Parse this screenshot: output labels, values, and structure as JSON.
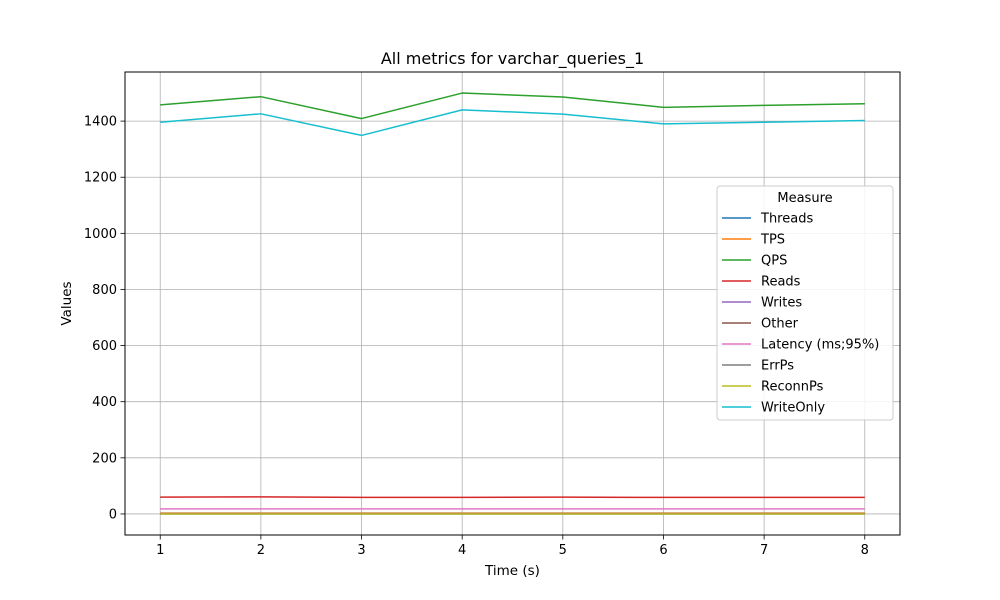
{
  "chart_data": {
    "type": "line",
    "title": "All metrics for varchar_queries_1",
    "xlabel": "Time (s)",
    "ylabel": "Values",
    "x": [
      1,
      2,
      3,
      4,
      5,
      6,
      7,
      8
    ],
    "xticks": [
      1,
      2,
      3,
      4,
      5,
      6,
      7,
      8
    ],
    "yticks": [
      0,
      200,
      400,
      600,
      800,
      1000,
      1200,
      1400
    ],
    "xlim": [
      0.65,
      8.35
    ],
    "ylim": [
      -75,
      1575
    ],
    "grid": true,
    "legend": {
      "title": "Measure",
      "placement": "center-right"
    },
    "series": [
      {
        "name": "Threads",
        "color": "#1f77b4",
        "values": [
          1,
          1,
          1,
          1,
          1,
          1,
          1,
          1
        ]
      },
      {
        "name": "TPS",
        "color": "#ff7f0e",
        "values": [
          3,
          3,
          3,
          3,
          3,
          3,
          3,
          3
        ]
      },
      {
        "name": "QPS",
        "color": "#2ca02c",
        "values": [
          1458,
          1487,
          1409,
          1500,
          1486,
          1449,
          1456,
          1462
        ]
      },
      {
        "name": "Reads",
        "color": "#d62728",
        "values": [
          60,
          61,
          59,
          59,
          60,
          59,
          59,
          59
        ]
      },
      {
        "name": "Writes",
        "color": "#9467bd",
        "values": [
          1,
          1,
          1,
          1,
          1,
          1,
          1,
          1
        ]
      },
      {
        "name": "Other",
        "color": "#8c564b",
        "values": [
          1,
          1,
          1,
          1,
          1,
          1,
          1,
          1
        ]
      },
      {
        "name": "Latency (ms;95%)",
        "color": "#e377c2",
        "values": [
          18,
          18,
          18,
          18,
          18,
          18,
          18,
          18
        ]
      },
      {
        "name": "ErrPs",
        "color": "#7f7f7f",
        "values": [
          0,
          0,
          0,
          0,
          0,
          0,
          0,
          0
        ]
      },
      {
        "name": "ReconnPs",
        "color": "#bcbd22",
        "values": [
          0,
          0,
          0,
          0,
          0,
          0,
          0,
          0
        ]
      },
      {
        "name": "WriteOnly",
        "color": "#17becf",
        "values": [
          1396,
          1426,
          1349,
          1440,
          1425,
          1390,
          1396,
          1402
        ]
      }
    ]
  }
}
